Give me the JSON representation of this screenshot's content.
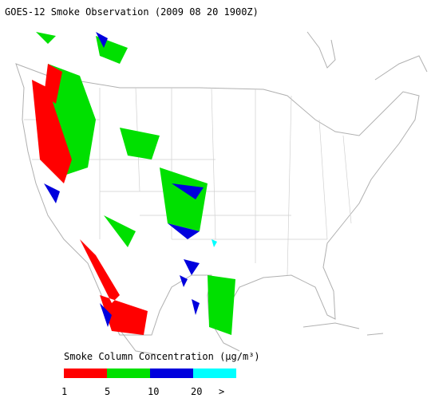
{
  "title": "GOES-12 Smoke Observation (2009 08 20  1900Z)",
  "legend": {
    "title": "Smoke Column Concentration (μg/m³)",
    "bins": [
      {
        "color": "#ff0000"
      },
      {
        "color": "#00e000"
      },
      {
        "color": "#0000dd"
      },
      {
        "color": "#00ffff"
      }
    ],
    "tick_labels": [
      "1",
      "5",
      "10",
      "20",
      ">"
    ]
  }
}
